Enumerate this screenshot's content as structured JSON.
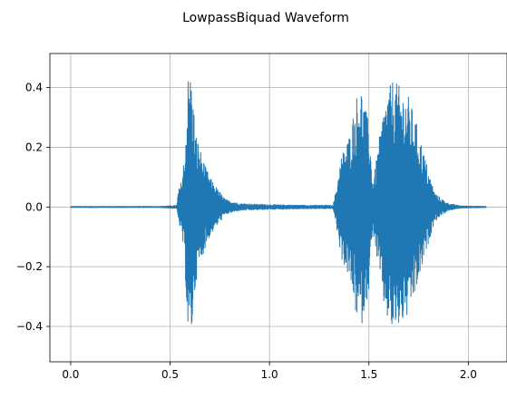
{
  "chart_data": {
    "type": "line",
    "title": "LowpassBiquad Waveform",
    "xlabel": "",
    "ylabel": "",
    "xlim": [
      -0.1045,
      2.1945
    ],
    "ylim": [
      -0.5185,
      0.5142
    ],
    "x_ticks": [
      0.0,
      0.5,
      1.0,
      1.5,
      2.0
    ],
    "x_tick_labels": [
      "0.0",
      "0.5",
      "1.0",
      "1.5",
      "2.0"
    ],
    "y_ticks": [
      -0.4,
      -0.2,
      0.0,
      0.2,
      0.4
    ],
    "y_tick_labels": [
      "−0.4",
      "−0.2",
      "0.0",
      "0.2",
      "0.4"
    ],
    "grid": true,
    "duration": 2.09,
    "series": [
      {
        "color": "#1f77b4",
        "envelope": [
          [
            0.0,
            0.002
          ],
          [
            0.45,
            0.002
          ],
          [
            0.5,
            0.004
          ],
          [
            0.535,
            0.006
          ],
          [
            0.54,
            0.055
          ],
          [
            0.55,
            0.07
          ],
          [
            0.56,
            0.1
          ],
          [
            0.575,
            0.2
          ],
          [
            0.59,
            0.44
          ],
          [
            0.6,
            0.465
          ],
          [
            0.61,
            0.42
          ],
          [
            0.62,
            0.33
          ],
          [
            0.63,
            0.25
          ],
          [
            0.65,
            0.2
          ],
          [
            0.67,
            0.15
          ],
          [
            0.7,
            0.1
          ],
          [
            0.74,
            0.06
          ],
          [
            0.78,
            0.025
          ],
          [
            0.85,
            0.012
          ],
          [
            1.0,
            0.008
          ],
          [
            1.2,
            0.006
          ],
          [
            1.32,
            0.006
          ],
          [
            1.335,
            0.06
          ],
          [
            1.36,
            0.17
          ],
          [
            1.4,
            0.24
          ],
          [
            1.44,
            0.38
          ],
          [
            1.46,
            0.41
          ],
          [
            1.48,
            0.34
          ],
          [
            1.5,
            0.28
          ],
          [
            1.52,
            0.08
          ],
          [
            1.55,
            0.22
          ],
          [
            1.58,
            0.36
          ],
          [
            1.62,
            0.43
          ],
          [
            1.66,
            0.4
          ],
          [
            1.7,
            0.37
          ],
          [
            1.74,
            0.28
          ],
          [
            1.77,
            0.2
          ],
          [
            1.8,
            0.12
          ],
          [
            1.83,
            0.05
          ],
          [
            1.86,
            0.03
          ],
          [
            1.9,
            0.012
          ],
          [
            1.96,
            0.004
          ],
          [
            2.09,
            0.002
          ]
        ]
      }
    ]
  }
}
